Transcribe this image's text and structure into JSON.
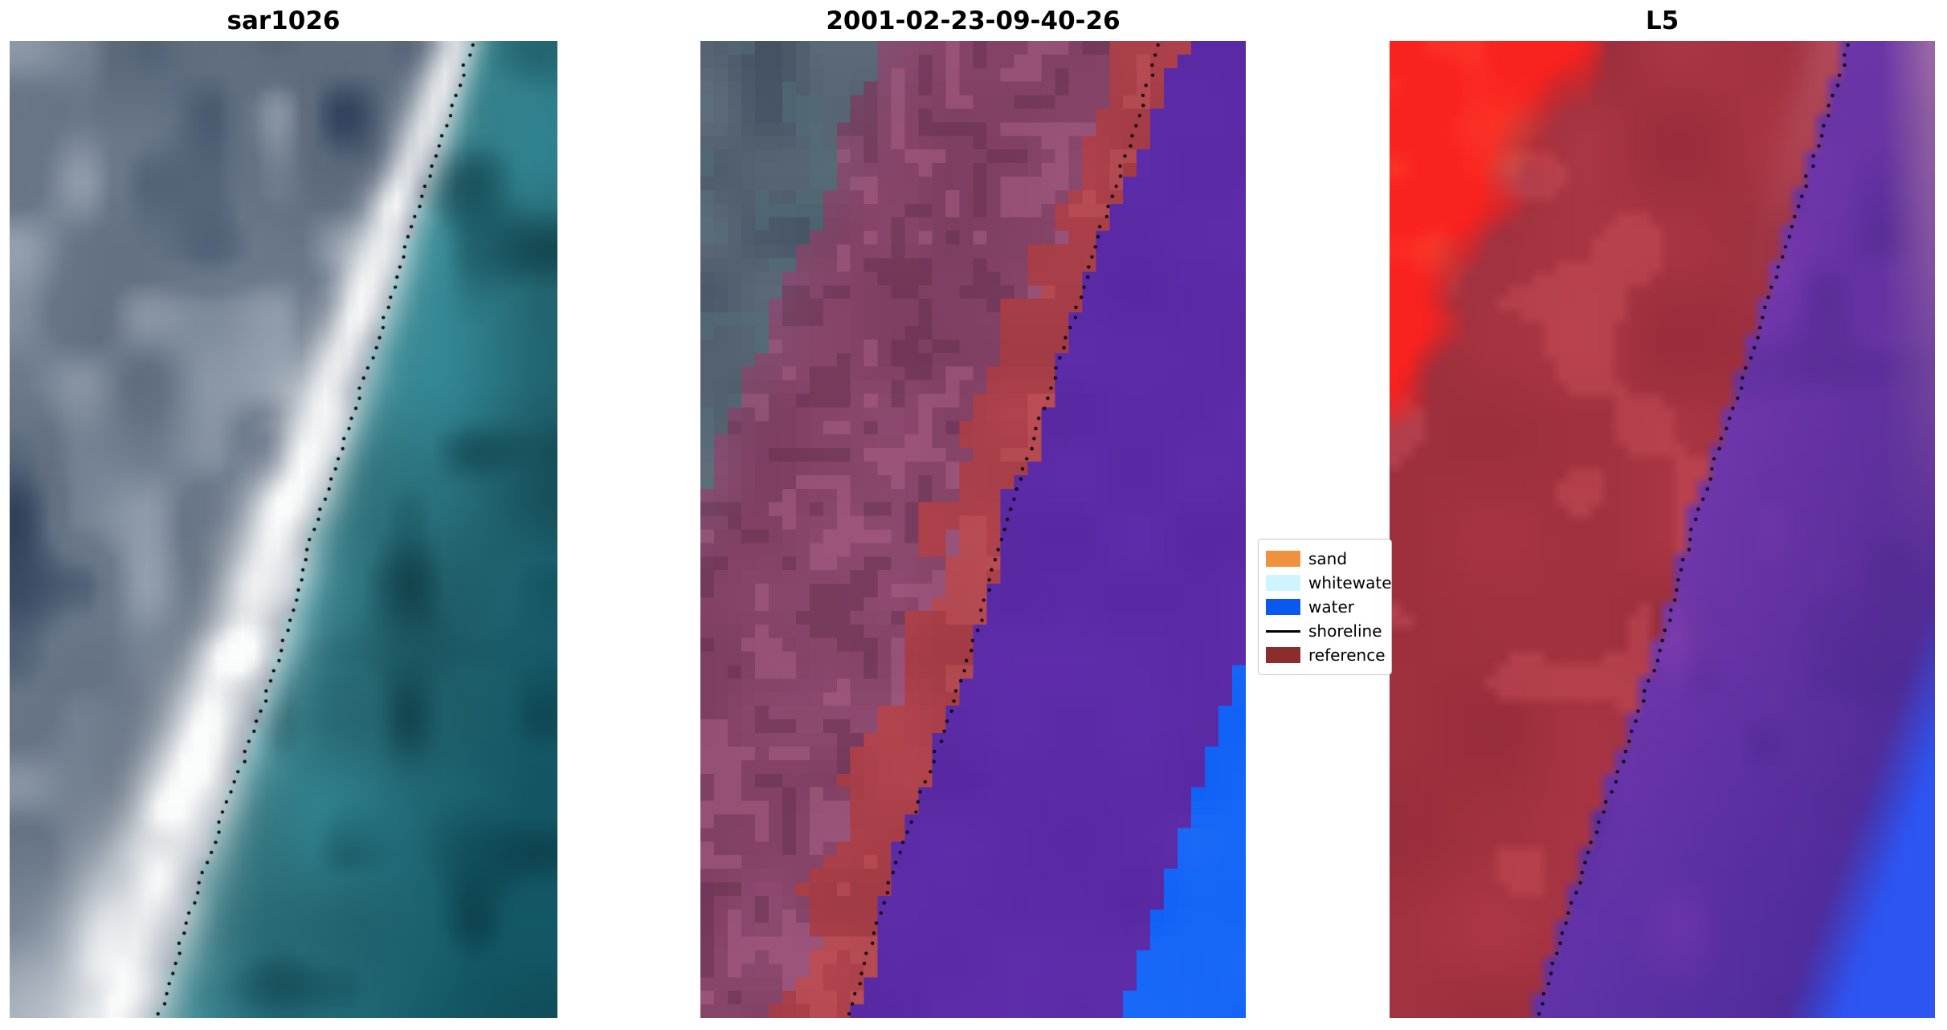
{
  "panels": [
    {
      "id": "sar1026",
      "title": "sar1026",
      "colors": {
        "water_near": "#3f96a2",
        "water_far": "#155f6e",
        "land": "#6c7a8c",
        "land_dark": "#2c3c58",
        "land_light": "#a6b1bd",
        "beach": "#fbfcfc"
      }
    },
    {
      "id": "classification",
      "title": "2001-02-23-09-40-26",
      "colors": {
        "corner_slate": "#606e7c",
        "land_mauve": "#8e4a70",
        "reference_band": "#b2444e",
        "water_purple": "#5828a2",
        "water_blue": "#0c5ff5"
      }
    },
    {
      "id": "L5",
      "title": "L5",
      "colors": {
        "cloud_red": "#fa221e",
        "land_red": "#ac3644",
        "purple": "#6e36aa",
        "blue": "#2d55f2",
        "edge_pink": "#b987a5"
      }
    }
  ],
  "legend": {
    "items": [
      {
        "label": "sand",
        "color": "#f0913e",
        "style": "patch"
      },
      {
        "label": "whitewater",
        "color": "#ccf5ff",
        "style": "patch"
      },
      {
        "label": "water",
        "color": "#0a58f0",
        "style": "patch"
      },
      {
        "label": "shoreline",
        "color": "#000000",
        "style": "line"
      },
      {
        "label": "reference",
        "color": "#8b2d2d",
        "style": "patch"
      }
    ]
  },
  "chart_data": {
    "type": "image-panel-figure",
    "panel_titles": [
      "sar1026",
      "2001-02-23-09-40-26",
      "L5"
    ],
    "legend_entries": [
      "sand",
      "whitewater",
      "water",
      "shoreline",
      "reference"
    ],
    "legend_colors": [
      "#f0913e",
      "#ccf5ff",
      "#0a58f0",
      "#000000",
      "#8b2d2d"
    ],
    "shoreline_path_norm": [
      [
        0,
        0.845
      ],
      [
        0.1,
        0.79
      ],
      [
        0.2,
        0.73
      ],
      [
        0.3,
        0.675
      ],
      [
        0.4,
        0.615
      ],
      [
        0.5,
        0.555
      ],
      [
        0.6,
        0.51
      ],
      [
        0.7,
        0.45
      ],
      [
        0.8,
        0.385
      ],
      [
        0.9,
        0.325
      ],
      [
        1,
        0.272
      ]
    ]
  }
}
